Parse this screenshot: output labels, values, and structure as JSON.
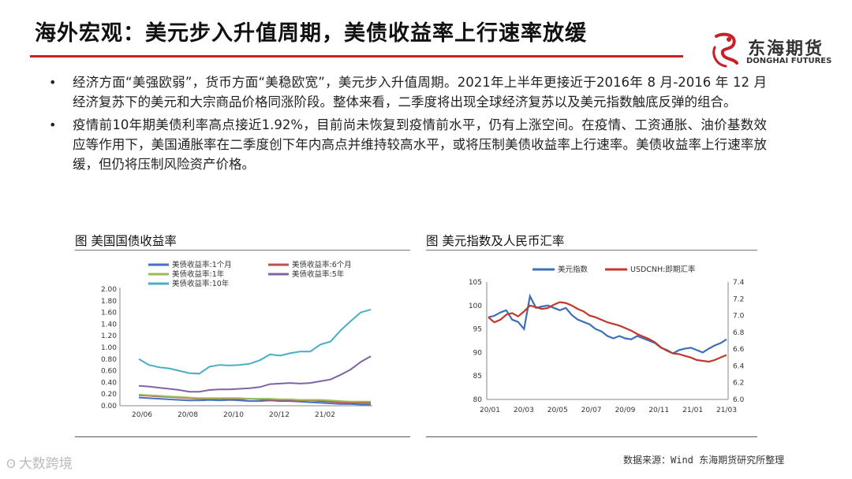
{
  "slide": {
    "title": "海外宏观：美元步入升值周期，美债收益率上行速率放缓",
    "logo_cn": "东海期货",
    "logo_en": "DONGHAI FUTURES",
    "bullets": [
      "经济方面“美强欧弱”，货币方面“美稳欧宽”，美元步入升值周期。2021年上半年更接近于2016年 8 月-2016 年 12 月经济复苏下的美元和大宗商品价格同涨阶段。整体来看，二季度将出现全球经济复苏以及美元指数触底反弹的组合。",
      "疫情前10年期美债利率高点接近1.92%，目前尚未恢复到疫情前水平，仍有上涨空间。在疫情、工资通胀、油价基数效应等作用下，美国通胀率在二季度创下年内高点并维持较高水平，或将压制美债收益率上行速率。美债收益率上行速率放缓，但仍将压制风险资产价格。"
    ],
    "bullet_mark": "•",
    "source": "数据来源：Wind 东海期货研究所整理",
    "watermark": "大数跨境",
    "watermark_icon": "ʘ"
  },
  "colors": {
    "accent_red": "#c8202a",
    "series_1m": "#4472c4",
    "series_6m": "#c0504d",
    "series_1y": "#9bbb59",
    "series_5y": "#8064a2",
    "series_10y": "#4bacc6",
    "usd_index": "#3d6fb6",
    "usdcnh": "#c0392b"
  },
  "chart_data": [
    {
      "type": "line",
      "figure_title": "图   美国国债收益率",
      "x_ticks": [
        "20/06",
        "20/08",
        "20/10",
        "20/12",
        "21/02"
      ],
      "y_ticks": [
        "0.00",
        "0.20",
        "0.40",
        "0.60",
        "0.80",
        "1.00",
        "1.20",
        "1.40",
        "1.60",
        "1.80",
        "2.00"
      ],
      "ylim": [
        0,
        2.0
      ],
      "legend": "top",
      "series": [
        {
          "name": "美债收益率:1个月",
          "color_key": "series_1m",
          "values": [
            0.14,
            0.13,
            0.12,
            0.11,
            0.1,
            0.09,
            0.09,
            0.1,
            0.09,
            0.1,
            0.09,
            0.08,
            0.08,
            0.09,
            0.08,
            0.08,
            0.07,
            0.06,
            0.05,
            0.04,
            0.03,
            0.03,
            0.02,
            0.02
          ]
        },
        {
          "name": "美债收益率:6个月",
          "color_key": "series_6m",
          "values": [
            0.18,
            0.17,
            0.16,
            0.15,
            0.14,
            0.13,
            0.12,
            0.12,
            0.12,
            0.12,
            0.11,
            0.12,
            0.11,
            0.1,
            0.1,
            0.1,
            0.09,
            0.09,
            0.08,
            0.07,
            0.06,
            0.05,
            0.05,
            0.05
          ]
        },
        {
          "name": "美债收益率:1年",
          "color_key": "series_1y",
          "values": [
            0.19,
            0.18,
            0.17,
            0.16,
            0.15,
            0.14,
            0.13,
            0.13,
            0.13,
            0.13,
            0.13,
            0.12,
            0.12,
            0.12,
            0.11,
            0.11,
            0.1,
            0.1,
            0.1,
            0.09,
            0.08,
            0.07,
            0.07,
            0.07
          ]
        },
        {
          "name": "美债收益率:5年",
          "color_key": "series_5y",
          "values": [
            0.34,
            0.33,
            0.31,
            0.29,
            0.27,
            0.24,
            0.24,
            0.27,
            0.28,
            0.28,
            0.29,
            0.3,
            0.32,
            0.37,
            0.38,
            0.39,
            0.38,
            0.39,
            0.42,
            0.45,
            0.53,
            0.62,
            0.75,
            0.85
          ]
        },
        {
          "name": "美债收益率:10年",
          "color_key": "series_10y",
          "values": [
            0.8,
            0.7,
            0.66,
            0.64,
            0.6,
            0.56,
            0.55,
            0.67,
            0.7,
            0.69,
            0.7,
            0.72,
            0.78,
            0.88,
            0.86,
            0.9,
            0.93,
            0.93,
            1.05,
            1.1,
            1.29,
            1.45,
            1.6,
            1.65
          ]
        }
      ]
    },
    {
      "type": "line",
      "figure_title": "图   美元指数及人民币汇率",
      "x_ticks": [
        "20/01",
        "20/03",
        "20/05",
        "20/07",
        "20/09",
        "20/11",
        "21/01",
        "21/03"
      ],
      "y_ticks_left": [
        "80",
        "85",
        "90",
        "95",
        "100",
        "105"
      ],
      "y_ticks_right": [
        "6.0",
        "6.2",
        "6.4",
        "6.6",
        "6.8",
        "7.0",
        "7.2",
        "7.4"
      ],
      "ylim_left": [
        80,
        105
      ],
      "ylim_right": [
        6.0,
        7.4
      ],
      "legend": "top",
      "series": [
        {
          "name": "美元指数",
          "axis": "left",
          "color_key": "usd_index",
          "values": [
            97.5,
            97.8,
            98.5,
            99.0,
            97.0,
            96.5,
            95.0,
            102.0,
            99.5,
            99.8,
            100.0,
            99.5,
            99.0,
            99.5,
            98.0,
            97.0,
            96.5,
            96.0,
            95.0,
            94.5,
            93.5,
            93.0,
            93.5,
            93.0,
            92.8,
            93.5,
            93.0,
            92.5,
            92.0,
            91.0,
            90.5,
            89.8,
            90.5,
            90.8,
            91.0,
            90.5,
            90.0,
            90.8,
            91.5,
            92.0,
            92.8
          ]
        },
        {
          "name": "USDCNH:即期汇率",
          "axis": "right",
          "color_key": "usdcnh",
          "values": [
            6.98,
            6.92,
            6.95,
            7.01,
            7.03,
            6.99,
            7.05,
            7.12,
            7.1,
            7.08,
            7.09,
            7.13,
            7.16,
            7.15,
            7.12,
            7.08,
            7.05,
            7.0,
            6.98,
            6.95,
            6.92,
            6.9,
            6.88,
            6.85,
            6.82,
            6.78,
            6.75,
            6.72,
            6.68,
            6.62,
            6.58,
            6.55,
            6.54,
            6.52,
            6.5,
            6.47,
            6.46,
            6.45,
            6.47,
            6.5,
            6.53
          ]
        }
      ]
    }
  ]
}
